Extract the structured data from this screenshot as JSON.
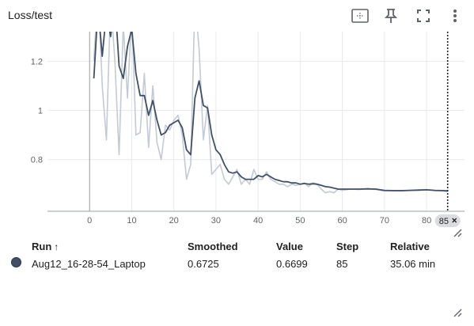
{
  "header": {
    "title": "Loss/test",
    "icons": [
      "fit-domain-icon",
      "pin-icon",
      "fullscreen-icon",
      "more-vert-icon"
    ]
  },
  "colors": {
    "smoothed": "#425066",
    "raw": "#c3cad6",
    "axis": "#9aa0a6",
    "grid": "#e8eaed"
  },
  "chart_data": {
    "type": "line",
    "title": "",
    "xlabel": "",
    "ylabel": "",
    "xlim": [
      -10,
      89
    ],
    "ylim": [
      0.59,
      1.32
    ],
    "x_ticks": [
      0,
      10,
      20,
      30,
      40,
      50,
      60,
      70,
      80
    ],
    "y_ticks": [
      0.8,
      1,
      1.2
    ],
    "grid": true,
    "hover_step": 85,
    "hover_step_label": "85",
    "series": [
      {
        "role": "smoothed",
        "x": [
          1,
          2,
          3,
          4,
          5,
          6,
          7,
          8,
          9,
          10,
          11,
          12,
          13,
          14,
          15,
          16,
          17,
          18,
          19,
          20,
          21,
          22,
          23,
          24,
          25,
          26,
          27,
          28,
          29,
          30,
          31,
          32,
          33,
          34,
          35,
          36,
          37,
          38,
          39,
          40,
          41,
          42,
          43,
          44,
          45,
          46,
          47,
          48,
          49,
          50,
          51,
          52,
          53,
          54,
          55,
          56,
          57,
          58,
          59,
          60,
          62,
          64,
          66,
          68,
          70,
          72,
          74,
          76,
          78,
          80,
          82,
          84,
          85
        ],
        "values": [
          1.13,
          1.42,
          1.22,
          1.4,
          1.3,
          1.45,
          1.18,
          1.13,
          1.26,
          1.33,
          1.15,
          1.06,
          1.06,
          0.98,
          1.04,
          0.96,
          0.9,
          0.91,
          0.94,
          0.95,
          0.96,
          0.93,
          0.84,
          0.82,
          1.05,
          1.12,
          1.02,
          1.01,
          0.9,
          0.84,
          0.82,
          0.78,
          0.75,
          0.745,
          0.75,
          0.73,
          0.72,
          0.72,
          0.72,
          0.735,
          0.73,
          0.74,
          0.73,
          0.72,
          0.715,
          0.71,
          0.71,
          0.705,
          0.705,
          0.7,
          0.703,
          0.7,
          0.702,
          0.7,
          0.695,
          0.69,
          0.688,
          0.684,
          0.68,
          0.68,
          0.68,
          0.68,
          0.681,
          0.68,
          0.675,
          0.674,
          0.674,
          0.675,
          0.676,
          0.677,
          0.675,
          0.674,
          0.6725
        ]
      },
      {
        "role": "raw",
        "x": [
          1,
          2,
          3,
          4,
          5,
          6,
          7,
          8,
          9,
          10,
          11,
          12,
          13,
          14,
          15,
          16,
          17,
          18,
          19,
          20,
          21,
          22,
          23,
          24,
          25,
          26,
          27,
          28,
          29,
          30,
          31,
          32,
          33,
          34,
          35,
          36,
          37,
          38,
          39,
          40,
          41,
          42,
          43,
          44,
          45,
          46,
          47,
          48,
          49,
          50,
          51,
          52,
          53,
          54,
          55,
          56,
          57,
          58,
          59,
          60,
          62,
          64,
          66,
          68,
          70,
          72,
          74,
          76,
          78,
          80,
          82,
          84,
          85
        ],
        "values": [
          1.2,
          1.5,
          1.1,
          0.88,
          1.45,
          1.2,
          0.82,
          1.35,
          1.05,
          1.4,
          0.9,
          0.91,
          1.15,
          0.85,
          1.1,
          0.87,
          0.8,
          0.94,
          0.92,
          0.96,
          0.98,
          0.9,
          0.72,
          0.78,
          1.45,
          1.25,
          0.88,
          1.02,
          0.74,
          0.76,
          0.78,
          0.72,
          0.7,
          0.73,
          0.76,
          0.7,
          0.72,
          0.7,
          0.76,
          0.72,
          0.72,
          0.75,
          0.72,
          0.71,
          0.7,
          0.7,
          0.69,
          0.7,
          0.695,
          0.7,
          0.705,
          0.69,
          0.705,
          0.7,
          0.68,
          0.665,
          0.67,
          0.665,
          0.68,
          0.675,
          0.68,
          0.678,
          0.682,
          0.678,
          0.672,
          0.673,
          0.672,
          0.675,
          0.677,
          0.678,
          0.674,
          0.672,
          0.6699
        ]
      }
    ]
  },
  "table": {
    "headers": {
      "run": "Run",
      "run_sort": "↑",
      "smoothed": "Smoothed",
      "value": "Value",
      "step": "Step",
      "relative": "Relative"
    },
    "rows": [
      {
        "run": "Aug12_16-28-54_Laptop",
        "smoothed": "0.6725",
        "value": "0.6699",
        "step": "85",
        "relative": "35.06 min",
        "color": "#425066"
      }
    ]
  }
}
